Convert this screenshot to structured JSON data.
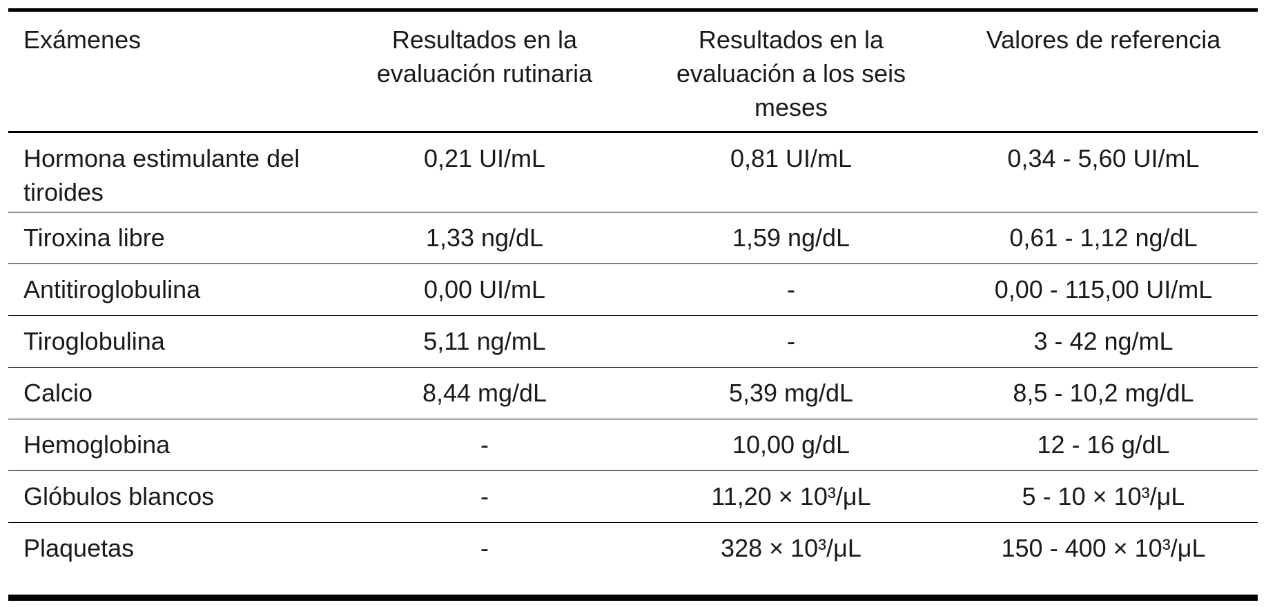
{
  "table": {
    "headers": [
      "Exámenes",
      "Resultados en la evaluación rutinaria",
      "Resultados en la evaluación a los seis meses",
      "Valores de referencia"
    ],
    "rows": [
      [
        "Hormona estimulante del tiroides",
        "0,21 UI/mL",
        "0,81 UI/mL",
        "0,34 - 5,60 UI/mL"
      ],
      [
        "Tiroxina libre",
        "1,33 ng/dL",
        "1,59 ng/dL",
        "0,61 - 1,12 ng/dL"
      ],
      [
        "Antitiroglobulina",
        "0,00 UI/mL",
        "-",
        "0,00 - 115,00 UI/mL"
      ],
      [
        "Tiroglobulina",
        "5,11 ng/mL",
        "-",
        "3 - 42 ng/mL"
      ],
      [
        "Calcio",
        "8,44 mg/dL",
        "5,39 mg/dL",
        "8,5 - 10,2 mg/dL"
      ],
      [
        "Hemoglobina",
        "-",
        "10,00 g/dL",
        "12 - 16 g/dL"
      ],
      [
        "Glóbulos blancos",
        "-",
        "11,20 × 10³/μL",
        "5 - 10 × 10³/μL"
      ],
      [
        "Plaquetas",
        "-",
        "328 × 10³/μL",
        "150 - 400 × 10³/μL"
      ]
    ]
  }
}
